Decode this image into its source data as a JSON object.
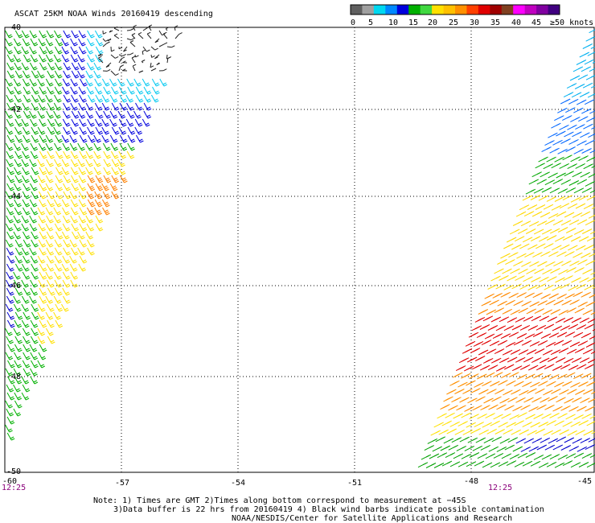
{
  "title": "ASCAT 25KM NOAA Winds 20160419 descending",
  "colorbar": {
    "labels": [
      "0",
      "5",
      "10",
      "15",
      "20",
      "25",
      "30",
      "35",
      "40",
      "45",
      "≥50 knots"
    ],
    "colors": [
      "#606060",
      "#a0a0a0",
      "#00d8f0",
      "#0088ff",
      "#0000dd",
      "#00b000",
      "#40d840",
      "#ffe000",
      "#ffc000",
      "#ff9000",
      "#ff4000",
      "#e00000",
      "#a00000",
      "#804020",
      "#ff00ff",
      "#c000c0",
      "#8000a0",
      "#400080"
    ]
  },
  "map": {
    "lon_labels": [
      "-60",
      "-57",
      "-54",
      "-51",
      "-48",
      "-45"
    ],
    "lat_labels": [
      "-40",
      "-42",
      "-44",
      "-46",
      "-48",
      "-50"
    ],
    "time_labels": [
      "12:25",
      "12:25"
    ]
  },
  "notes": {
    "line1": "Note: 1) Times are GMT 2)Times along bottom correspond to measurement at −45S",
    "line2": "3)Data buffer is 22 hrs from 20160419 4) Black wind barbs indicate possible contamination",
    "line3": "NOAA/NESDIS/Center for Satellite Applications and Research"
  }
}
